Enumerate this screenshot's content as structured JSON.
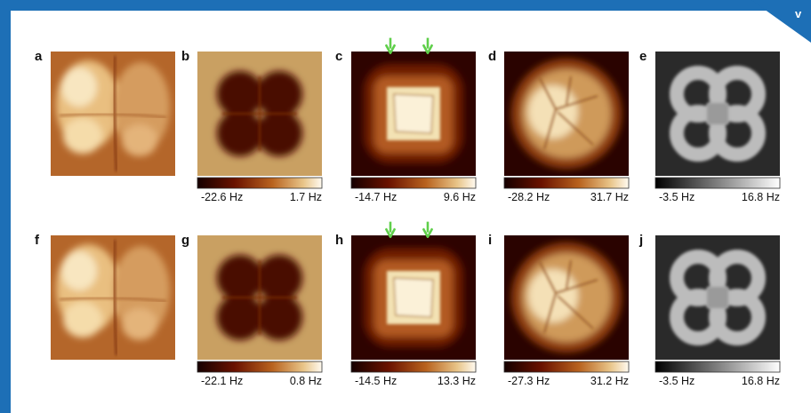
{
  "corner_text": "v",
  "panels": [
    {
      "label": "a"
    },
    {
      "label": "b",
      "colorbar": {
        "min": "-22.6 Hz",
        "max": "1.7 Hz"
      }
    },
    {
      "label": "c",
      "colorbar": {
        "min": "-14.7 Hz",
        "max": "9.6 Hz"
      }
    },
    {
      "label": "d",
      "colorbar": {
        "min": "-28.2 Hz",
        "max": "31.7 Hz"
      }
    },
    {
      "label": "e",
      "colorbar": {
        "min": "-3.5 Hz",
        "max": "16.8 Hz"
      }
    },
    {
      "label": "f"
    },
    {
      "label": "g",
      "colorbar": {
        "min": "-22.1 Hz",
        "max": "0.8 Hz"
      }
    },
    {
      "label": "h",
      "colorbar": {
        "min": "-14.5 Hz",
        "max": "13.3 Hz"
      }
    },
    {
      "label": "i",
      "colorbar": {
        "min": "-27.3 Hz",
        "max": "31.2 Hz"
      }
    },
    {
      "label": "j",
      "colorbar": {
        "min": "-3.5 Hz",
        "max": "16.8 Hz"
      }
    }
  ]
}
